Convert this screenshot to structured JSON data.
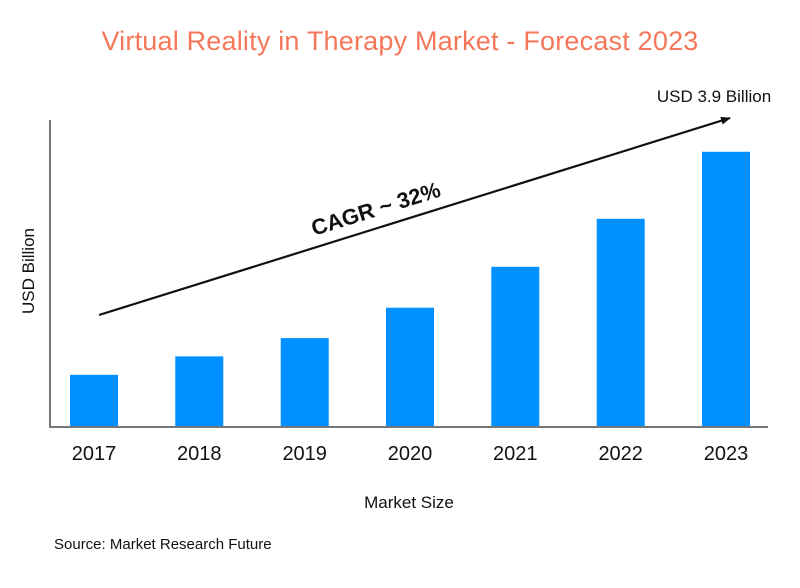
{
  "chart_data": {
    "type": "bar",
    "title": "Virtual Reality in Therapy Market - Forecast 2023",
    "categories": [
      "2017",
      "2018",
      "2019",
      "2020",
      "2021",
      "2022",
      "2023"
    ],
    "values": [
      0.74,
      1.0,
      1.26,
      1.69,
      2.27,
      2.95,
      3.9
    ],
    "xlabel": "Market Size",
    "ylabel": "USD Billion",
    "ylim": [
      0,
      4.35
    ],
    "grid": false,
    "legend": null,
    "bar_color": "#0090ff",
    "annotations": {
      "end_value_label": "USD 3.9 Billion",
      "trend_label": "CAGR ~ 32%",
      "trend_arrow": true
    }
  },
  "colors": {
    "title": "#f4775a",
    "bar": "#0090ff",
    "axis": "#777777",
    "text": "#111111"
  },
  "footer": {
    "source": "Source: Market Research Future"
  }
}
